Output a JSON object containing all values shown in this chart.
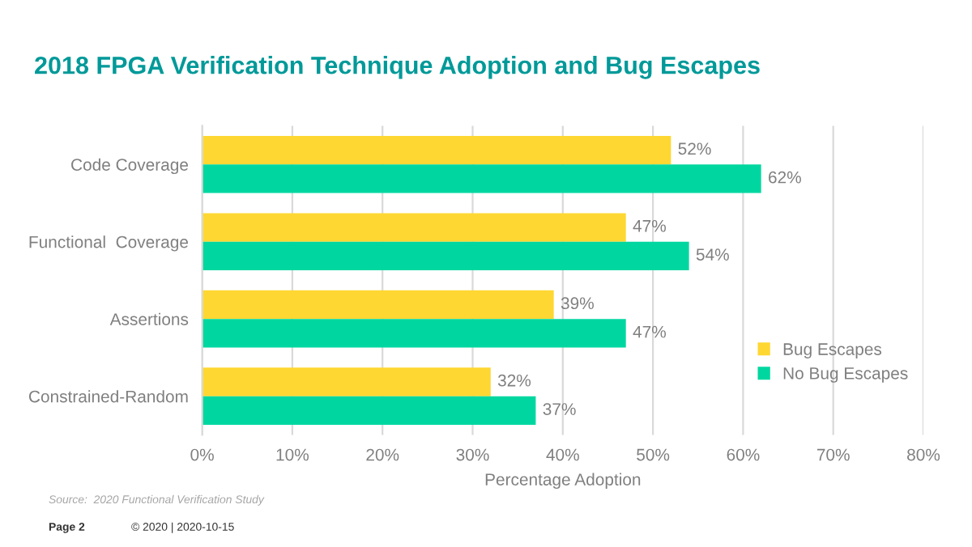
{
  "chart_data": {
    "type": "bar",
    "orientation": "horizontal",
    "title": "2018 FPGA Verification Technique Adoption and Bug Escapes",
    "xlabel": "Percentage Adoption",
    "categories": [
      "Code Coverage",
      "Functional  Coverage",
      "Assertions",
      "Constrained-Random"
    ],
    "series": [
      {
        "name": "Bug Escapes",
        "color": "#ffd732",
        "values": [
          52,
          47,
          39,
          32
        ],
        "value_labels": [
          "52%",
          "47%",
          "39%",
          "32%"
        ]
      },
      {
        "name": "No Bug Escapes",
        "color": "#00d7a0",
        "values": [
          62,
          54,
          47,
          37
        ],
        "value_labels": [
          "62%",
          "54%",
          "47%",
          "37%"
        ]
      }
    ],
    "xlim": [
      0,
      80
    ],
    "xticks": [
      {
        "value": 0,
        "label": "0%"
      },
      {
        "value": 10,
        "label": "10%"
      },
      {
        "value": 20,
        "label": "20%"
      },
      {
        "value": 30,
        "label": "30%"
      },
      {
        "value": 40,
        "label": "40%"
      },
      {
        "value": 50,
        "label": "50%"
      },
      {
        "value": 60,
        "label": "60%"
      },
      {
        "value": 70,
        "label": "70%"
      },
      {
        "value": 80,
        "label": "80%"
      }
    ],
    "grid": "x",
    "legend": "bottom right",
    "annotations": [
      "Source:  2020 Functional Verification Study",
      "Page 2",
      "© 2020 | 2020-10-15"
    ]
  }
}
